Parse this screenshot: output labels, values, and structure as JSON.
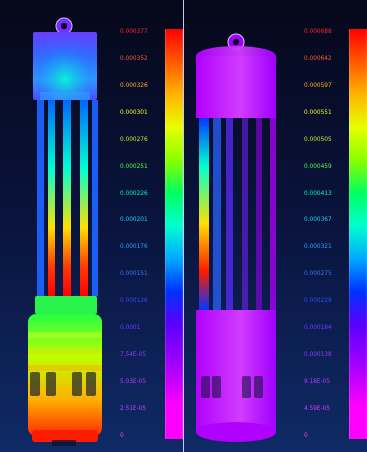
{
  "left": {
    "scale_labels": [
      "0.000377",
      "0.000352",
      "0.000326",
      "0.000301",
      "0.000276",
      "0.000251",
      "0.000226",
      "0.000201",
      "0.000176",
      "0.000151",
      "0.000126",
      "0.0001",
      "7.54E-05",
      "5.03E-05",
      "2.51E-05",
      "0"
    ],
    "label_colors": [
      "#ff2a2a",
      "#ff5b35",
      "#ffb320",
      "#f8ff2a",
      "#b8ff2a",
      "#55ff4b",
      "#00ffb7",
      "#19d6ff",
      "#2aa0ff",
      "#3477ff",
      "#3c4bff",
      "#6b3cff",
      "#8d3cff",
      "#b43cff",
      "#d63cff",
      "#ff3cff"
    ]
  },
  "right": {
    "scale_labels": [
      "0.000688",
      "0.000642",
      "0.000597",
      "0.000551",
      "0.000505",
      "0.000459",
      "0.000413",
      "0.000367",
      "0.000321",
      "0.000275",
      "0.000229",
      "0.000184",
      "0.000138",
      "9.18E-05",
      "4.59E-05",
      "0"
    ],
    "label_colors": [
      "#ff2a2a",
      "#ff5b35",
      "#ffb320",
      "#f8ff2a",
      "#b8ff2a",
      "#55ff4b",
      "#00ffb7",
      "#19d6ff",
      "#2aa0ff",
      "#3477ff",
      "#3c4bff",
      "#6b3cff",
      "#8d3cff",
      "#b43cff",
      "#d63cff",
      "#ff3cff"
    ]
  }
}
